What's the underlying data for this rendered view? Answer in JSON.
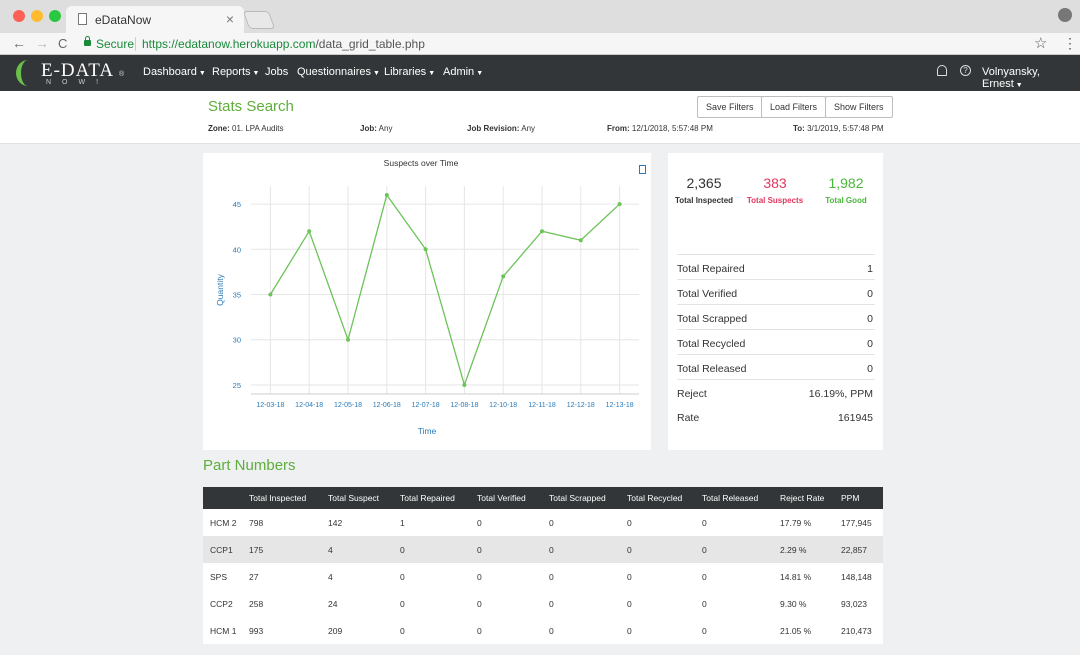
{
  "browser": {
    "tab_title": "eDataNow",
    "tab_close": "×",
    "secure_label": "Secure",
    "url_host": "https://edatanow.herokuapp.com",
    "url_path": "/data_grid_table.php",
    "back": "←",
    "forward": "→",
    "reload": "C",
    "star": "☆",
    "menu": "⋮",
    "profile": "●"
  },
  "nav": {
    "brand": "E-DATA",
    "brand_reg": "®",
    "brand_sub": "NOW!",
    "items": [
      "Dashboard",
      "Reports",
      "Jobs",
      "Questionnaires",
      "Libraries",
      "Admin"
    ],
    "help": "?",
    "user": "Volnyansky, Ernest"
  },
  "search": {
    "title": "Stats Search",
    "buttons": [
      "Save Filters",
      "Load Filters",
      "Show Filters"
    ],
    "zone_label": "Zone:",
    "zone_value": "01. LPA Audits",
    "job_label": "Job:",
    "job_value": "Any",
    "revision_label": "Job Revision:",
    "revision_value": "Any",
    "from_label": "From:",
    "from_value": "12/1/2018, 5:57:48 PM",
    "to_label": "To:",
    "to_value": "3/1/2019, 5:57:48 PM"
  },
  "chart_data": {
    "type": "line",
    "title": "Suspects over Time",
    "xlabel": "Time",
    "ylabel": "Quantity",
    "categories": [
      "12-03-18",
      "12-04-18",
      "12-05-18",
      "12-06-18",
      "12-07-18",
      "12-08-18",
      "12-10-18",
      "12-11-18",
      "12-12-18",
      "12-13-18"
    ],
    "values": [
      35,
      42,
      30,
      46,
      40,
      25,
      37,
      42,
      41,
      45
    ],
    "yticks": [
      25,
      30,
      35,
      40,
      45
    ],
    "ylim": [
      24,
      47
    ],
    "grid": true,
    "line_color": "#6cc35a"
  },
  "totals": {
    "inspected_value": "2,365",
    "inspected_label": "Total Inspected",
    "suspects_value": "383",
    "suspects_label": "Total Suspects",
    "good_value": "1,982",
    "good_label": "Total Good",
    "rows": [
      {
        "label": "Total Repaired",
        "value": "1"
      },
      {
        "label": "Total Verified",
        "value": "0"
      },
      {
        "label": "Total Scrapped",
        "value": "0"
      },
      {
        "label": "Total Recycled",
        "value": "0"
      },
      {
        "label": "Total Released",
        "value": "0"
      },
      {
        "label": "Reject",
        "value": "16.19%, PPM"
      },
      {
        "label": "Rate",
        "value": "161945"
      }
    ],
    "colors": {
      "suspects": "#e2365e",
      "good": "#49b83a"
    }
  },
  "parts": {
    "title": "Part Numbers",
    "headers": [
      "",
      "Total Inspected",
      "Total Suspect",
      "Total Repaired",
      "Total Verified",
      "Total Scrapped",
      "Total Recycled",
      "Total Released",
      "Reject Rate",
      "PPM"
    ],
    "rows": [
      [
        "HCM 2",
        "798",
        "142",
        "1",
        "0",
        "0",
        "0",
        "0",
        "17.79 %",
        "177,945"
      ],
      [
        "CCP1",
        "175",
        "4",
        "0",
        "0",
        "0",
        "0",
        "0",
        "2.29 %",
        "22,857"
      ],
      [
        "SPS",
        "27",
        "4",
        "0",
        "0",
        "0",
        "0",
        "0",
        "14.81 %",
        "148,148"
      ],
      [
        "CCP2",
        "258",
        "24",
        "0",
        "0",
        "0",
        "0",
        "0",
        "9.30 %",
        "93,023"
      ],
      [
        "HCM 1",
        "993",
        "209",
        "0",
        "0",
        "0",
        "0",
        "0",
        "21.05 %",
        "210,473"
      ]
    ]
  }
}
